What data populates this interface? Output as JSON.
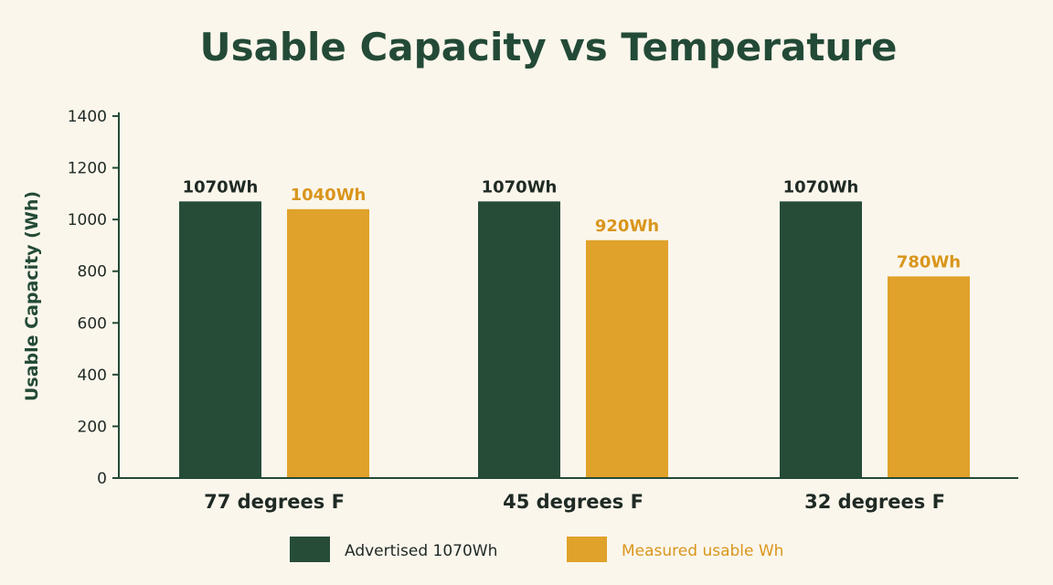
{
  "chart_data": {
    "type": "bar",
    "title": "Usable Capacity vs Temperature",
    "xlabel": "",
    "ylabel": "Usable Capacity (Wh)",
    "ylim": [
      0,
      1400
    ],
    "yticks": [
      0,
      200,
      400,
      600,
      800,
      1000,
      1200,
      1400
    ],
    "categories": [
      "77 degrees F",
      "45 degrees F",
      "32 degrees F"
    ],
    "series": [
      {
        "name": "Advertised 1070Wh",
        "color": "#264c38",
        "values": [
          1070,
          1070,
          1070
        ],
        "labels": [
          "1070Wh",
          "1070Wh",
          "1070Wh"
        ]
      },
      {
        "name": "Measured usable Wh",
        "color": "#e0a22a",
        "values": [
          1040,
          920,
          780
        ],
        "labels": [
          "1040Wh",
          "920Wh",
          "780Wh"
        ]
      }
    ],
    "grid": false,
    "legend_position": "bottom-center",
    "colors": {
      "background": "#fbf6ec",
      "title": "#234a36",
      "axis": "#234a36",
      "advertised_label": "#1f2a24",
      "measured_label": "#d9961c"
    }
  }
}
